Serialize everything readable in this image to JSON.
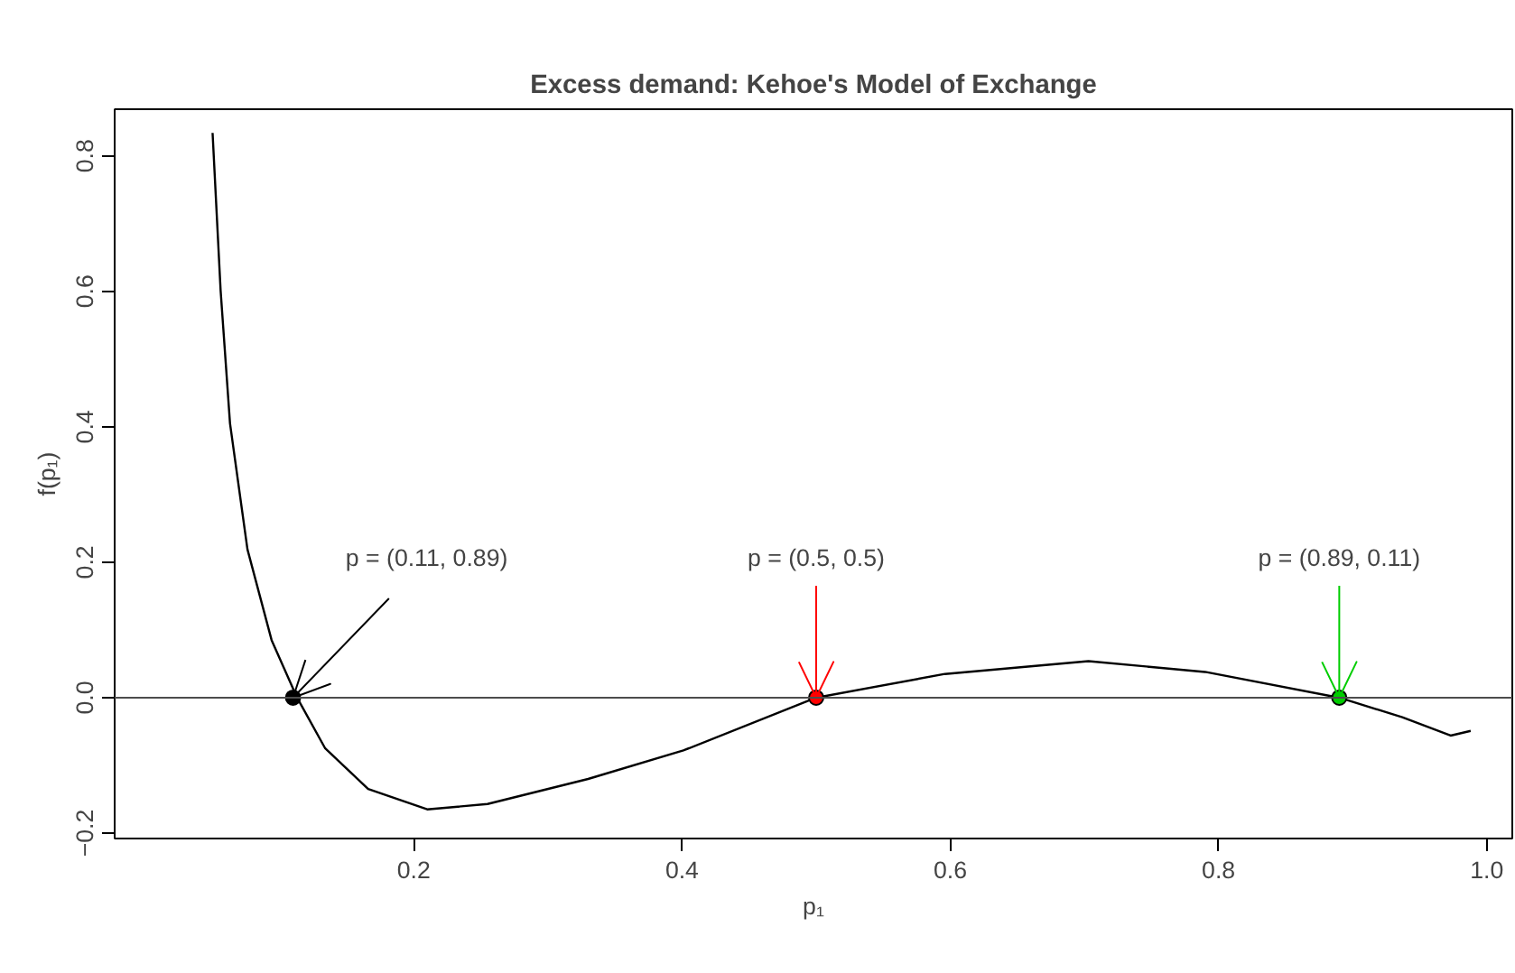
{
  "chart_data": {
    "type": "line",
    "title": "Excess demand: Kehoe's Model of Exchange",
    "xlabel": "p₁",
    "ylabel": "f(p₁)",
    "xlim": [
      -0.023,
      1.019
    ],
    "ylim": [
      -0.208,
      0.869
    ],
    "xticks": [
      0.2,
      0.4,
      0.6,
      0.8,
      {
        "value": 1.0,
        "label": "1.0"
      }
    ],
    "yticks": [
      -0.2,
      {
        "value": 0,
        "label": "0.0"
      },
      0.2,
      0.4,
      0.6,
      0.8
    ],
    "grid": false,
    "marker": "circle",
    "line_style": "solid",
    "ref_lines": [
      {
        "axis": "y",
        "value": 0,
        "color": "#4d4d4d"
      }
    ],
    "series": [
      {
        "type": "line",
        "marker": "none",
        "color": "#000000",
        "x": [
          0.05,
          0.056,
          0.063,
          0.076,
          0.094,
          0.113,
          0.134,
          0.166,
          0.21,
          0.255,
          0.33,
          0.401,
          0.5,
          0.596,
          0.703,
          0.79,
          0.89,
          0.937,
          0.973,
          0.988
        ],
        "values": [
          0.834,
          0.601,
          0.405,
          0.219,
          0.085,
          0.0,
          -0.075,
          -0.135,
          -0.165,
          -0.157,
          -0.12,
          -0.078,
          0.0,
          0.035,
          0.054,
          0.038,
          0.0,
          -0.029,
          -0.056,
          -0.049
        ]
      },
      {
        "type": "scatter",
        "x": [
          0.11,
          0.5,
          0.89
        ],
        "values": [
          0,
          0,
          0
        ],
        "colors": [
          "#000000",
          "#ff0000",
          "#00cd00"
        ]
      }
    ],
    "annotations": [
      "p = (0.11, 0.89)",
      "p = (0.5, 0.5)",
      "p = (0.89, 0.11)"
    ]
  }
}
